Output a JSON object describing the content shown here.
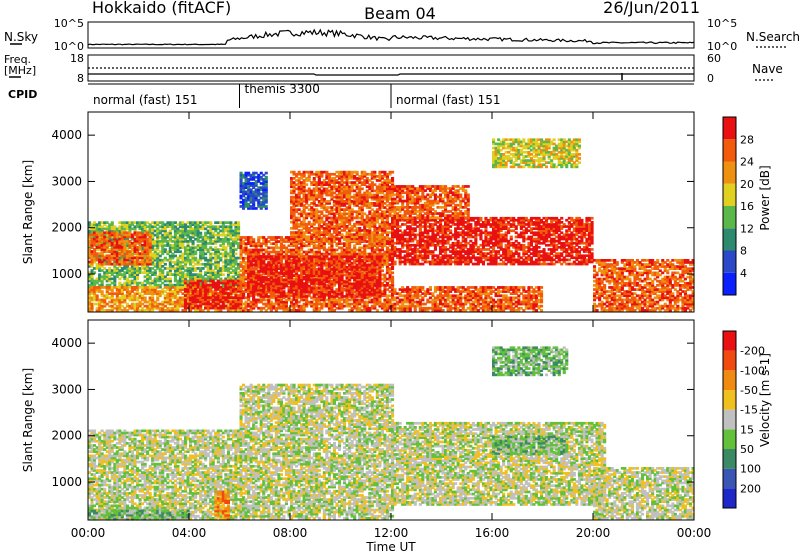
{
  "header": {
    "station": "Hokkaido (fitACF)",
    "beam": "Beam 04",
    "date": "26/Jun/2011"
  },
  "top_panels": {
    "nsky_label": "N.Sky",
    "nsky_ticks": [
      "10^5",
      "10^0"
    ],
    "nsearch_label": "N.Search",
    "nsearch_ticks": [
      "10^5",
      "10^0"
    ],
    "freq_label": "Freq.",
    "freq_unit": "[MHz]",
    "freq_ticks": [
      "18",
      "8"
    ],
    "nave_label": "Nave",
    "nave_ticks": [
      "60",
      "0"
    ],
    "cpid_label": "CPID"
  },
  "cpid_segments": [
    {
      "label": "normal (fast) 151",
      "start_hour": 0,
      "end_hour": 6
    },
    {
      "label": "themis 3300",
      "start_hour": 6,
      "end_hour": 12
    },
    {
      "label": "normal (fast) 151",
      "start_hour": 12,
      "end_hour": 24
    }
  ],
  "chart_data": [
    {
      "type": "heatmap",
      "panel": "power",
      "ylabel": "Slant Range [km]",
      "ylim": [
        180,
        4500
      ],
      "yticks": [
        "1000",
        "2000",
        "3000",
        "4000"
      ],
      "xlim": [
        0,
        24
      ],
      "colorbar_label": "Power [dB]",
      "colorbar_ticks": [
        "4",
        "8",
        "12",
        "16",
        "20",
        "24",
        "28"
      ],
      "colorbar_colors": [
        "#0a20ff",
        "#2a48c8",
        "#2e8a6e",
        "#5ab84a",
        "#e0d020",
        "#f09010",
        "#f25a0c",
        "#e81010"
      ],
      "echo_regions": [
        {
          "x0": 0.0,
          "x1": 5.9,
          "r0": 700,
          "r1": 2100,
          "level": 3
        },
        {
          "x0": 0.0,
          "x1": 2.5,
          "r0": 1200,
          "r1": 1900,
          "level": 6
        },
        {
          "x0": 0.0,
          "x1": 6.0,
          "r0": 200,
          "r1": 700,
          "level": 5
        },
        {
          "x0": 3.8,
          "x1": 6.0,
          "r0": 250,
          "r1": 850,
          "level": 7
        },
        {
          "x0": 6.0,
          "x1": 12.0,
          "r0": 200,
          "r1": 1800,
          "level": 6
        },
        {
          "x0": 6.3,
          "x1": 11.5,
          "r0": 500,
          "r1": 1400,
          "level": 7
        },
        {
          "x0": 8.0,
          "x1": 12.0,
          "r0": 1700,
          "r1": 3200,
          "level": 6
        },
        {
          "x0": 6.0,
          "x1": 7.0,
          "r0": 2400,
          "r1": 3200,
          "level": 1
        },
        {
          "x0": 12.0,
          "x1": 20.0,
          "r0": 1200,
          "r1": 2200,
          "level": 7
        },
        {
          "x0": 12.0,
          "x1": 18.0,
          "r0": 200,
          "r1": 700,
          "level": 6
        },
        {
          "x0": 20.0,
          "x1": 24.0,
          "r0": 200,
          "r1": 1300,
          "level": 6
        },
        {
          "x0": 12.0,
          "x1": 15.0,
          "r0": 2200,
          "r1": 2900,
          "level": 6
        },
        {
          "x0": 16.0,
          "x1": 19.5,
          "r0": 3300,
          "r1": 3900,
          "level": 4
        }
      ]
    },
    {
      "type": "heatmap",
      "panel": "velocity",
      "ylabel": "Slant Range [km]",
      "ylim": [
        180,
        4500
      ],
      "yticks": [
        "1000",
        "2000",
        "3000",
        "4000"
      ],
      "xlabel": "Time UT",
      "xticks": [
        "00:00",
        "04:00",
        "08:00",
        "12:00",
        "16:00",
        "20:00",
        "00:00"
      ],
      "xlim": [
        0,
        24
      ],
      "colorbar_label": "Velocity [m s-1]",
      "colorbar_ticks": [
        "200",
        "100",
        "50",
        "15",
        "-15",
        "-50",
        "-100",
        "-200"
      ],
      "colorbar_colors": [
        "#1e28c8",
        "#3a56b4",
        "#3c8a64",
        "#62c03a",
        "#c0c0c0",
        "#f0c020",
        "#f08a10",
        "#f04a10",
        "#e81010"
      ],
      "echo_regions": [
        {
          "x0": 0.0,
          "x1": 6.0,
          "r0": 200,
          "r1": 2100,
          "level": 4
        },
        {
          "x0": 6.0,
          "x1": 12.0,
          "r0": 200,
          "r1": 3100,
          "level": 4
        },
        {
          "x0": 12.0,
          "x1": 20.5,
          "r0": 500,
          "r1": 2300,
          "level": 4
        },
        {
          "x0": 20.0,
          "x1": 24.0,
          "r0": 200,
          "r1": 1300,
          "level": 4
        },
        {
          "x0": 0.0,
          "x1": 4.0,
          "r0": 180,
          "r1": 400,
          "level": 3
        },
        {
          "x0": 5.0,
          "x1": 5.5,
          "r0": 180,
          "r1": 800,
          "level": 6
        },
        {
          "x0": 16.0,
          "x1": 19.0,
          "r0": 1600,
          "r1": 2000,
          "level": 3
        },
        {
          "x0": 16.0,
          "x1": 19.0,
          "r0": 3300,
          "r1": 3900,
          "level": 3
        }
      ]
    }
  ]
}
